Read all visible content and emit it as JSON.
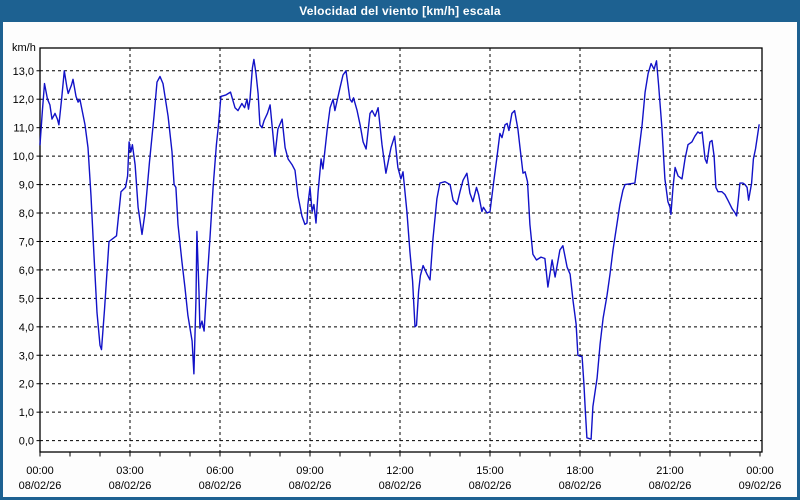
{
  "window": {
    "title": "Velocidad del viento [km/h] escala",
    "titlebar_color": "#1d6191",
    "border_color": "#1d6191",
    "background_color": "#fdfdfd"
  },
  "chart_data": {
    "type": "line",
    "title": "Velocidad del viento [km/h] escala",
    "ylabel": "km/h",
    "xlabel": "",
    "ylim": [
      -0.4,
      13.8
    ],
    "x_hours_range": [
      0,
      24
    ],
    "grid": "dashed-black-on-white",
    "legend": "none",
    "plot_bg": "#ffffff",
    "line_color": "#1212c8",
    "y_ticks": [
      {
        "value": 13,
        "label": "13,0"
      },
      {
        "value": 12,
        "label": "12,0"
      },
      {
        "value": 11,
        "label": "11,0"
      },
      {
        "value": 10,
        "label": "10,0"
      },
      {
        "value": 9,
        "label": "9,0"
      },
      {
        "value": 8,
        "label": "8,0"
      },
      {
        "value": 7,
        "label": "7,0"
      },
      {
        "value": 6,
        "label": "6,0"
      },
      {
        "value": 5,
        "label": "5,0"
      },
      {
        "value": 4,
        "label": "4,0"
      },
      {
        "value": 3,
        "label": "3,0"
      },
      {
        "value": 2,
        "label": "2,0"
      },
      {
        "value": 1,
        "label": "1,0"
      },
      {
        "value": 0,
        "label": "0,0"
      }
    ],
    "x_ticks": [
      {
        "hour": 0,
        "time": "00:00",
        "date": "08/02/26"
      },
      {
        "hour": 3,
        "time": "03:00",
        "date": "08/02/26"
      },
      {
        "hour": 6,
        "time": "06:00",
        "date": "08/02/26"
      },
      {
        "hour": 9,
        "time": "09:00",
        "date": "08/02/26"
      },
      {
        "hour": 12,
        "time": "12:00",
        "date": "08/02/26"
      },
      {
        "hour": 15,
        "time": "15:00",
        "date": "08/02/26"
      },
      {
        "hour": 18,
        "time": "18:00",
        "date": "08/02/26"
      },
      {
        "hour": 21,
        "time": "21:00",
        "date": "08/02/26"
      },
      {
        "hour": 24,
        "time": "00:00",
        "date": "09/02/26"
      }
    ],
    "series": [
      {
        "name": "Velocidad del viento",
        "units": "km/h",
        "points": [
          [
            0.0,
            10.4
          ],
          [
            0.08,
            11.6
          ],
          [
            0.15,
            12.55
          ],
          [
            0.25,
            12.0
          ],
          [
            0.33,
            11.8
          ],
          [
            0.4,
            11.3
          ],
          [
            0.5,
            11.5
          ],
          [
            0.58,
            11.3
          ],
          [
            0.63,
            11.1
          ],
          [
            0.72,
            12.0
          ],
          [
            0.81,
            13.0
          ],
          [
            0.9,
            12.4
          ],
          [
            0.94,
            12.2
          ],
          [
            1.05,
            12.5
          ],
          [
            1.1,
            12.7
          ],
          [
            1.2,
            12.1
          ],
          [
            1.27,
            11.9
          ],
          [
            1.33,
            12.0
          ],
          [
            1.5,
            11.1
          ],
          [
            1.6,
            10.3
          ],
          [
            1.7,
            8.6
          ],
          [
            1.8,
            6.5
          ],
          [
            1.9,
            4.5
          ],
          [
            2.0,
            3.35
          ],
          [
            2.05,
            3.2
          ],
          [
            2.15,
            4.6
          ],
          [
            2.3,
            7.0
          ],
          [
            2.55,
            7.2
          ],
          [
            2.7,
            8.75
          ],
          [
            2.85,
            8.9
          ],
          [
            2.92,
            9.3
          ],
          [
            2.97,
            10.5
          ],
          [
            3.03,
            10.15
          ],
          [
            3.08,
            10.4
          ],
          [
            3.17,
            9.7
          ],
          [
            3.27,
            8.2
          ],
          [
            3.4,
            7.25
          ],
          [
            3.5,
            8.0
          ],
          [
            3.65,
            9.8
          ],
          [
            3.8,
            11.4
          ],
          [
            3.9,
            12.6
          ],
          [
            4.0,
            12.8
          ],
          [
            4.1,
            12.55
          ],
          [
            4.27,
            11.4
          ],
          [
            4.4,
            10.15
          ],
          [
            4.47,
            9.0
          ],
          [
            4.53,
            8.9
          ],
          [
            4.6,
            7.6
          ],
          [
            4.73,
            6.3
          ],
          [
            4.83,
            5.4
          ],
          [
            4.93,
            4.4
          ],
          [
            5.07,
            3.5
          ],
          [
            5.13,
            2.35
          ],
          [
            5.2,
            5.0
          ],
          [
            5.23,
            7.35
          ],
          [
            5.3,
            5.2
          ],
          [
            5.33,
            3.95
          ],
          [
            5.4,
            4.2
          ],
          [
            5.47,
            3.85
          ],
          [
            5.57,
            5.6
          ],
          [
            5.67,
            7.2
          ],
          [
            5.77,
            8.9
          ],
          [
            5.88,
            10.4
          ],
          [
            5.95,
            11.1
          ],
          [
            6.03,
            12.1
          ],
          [
            6.2,
            12.15
          ],
          [
            6.35,
            12.25
          ],
          [
            6.5,
            11.7
          ],
          [
            6.6,
            11.6
          ],
          [
            6.73,
            11.85
          ],
          [
            6.82,
            11.7
          ],
          [
            6.9,
            12.0
          ],
          [
            6.95,
            11.65
          ],
          [
            7.0,
            12.0
          ],
          [
            7.08,
            13.1
          ],
          [
            7.13,
            13.4
          ],
          [
            7.2,
            12.9
          ],
          [
            7.27,
            12.2
          ],
          [
            7.33,
            11.1
          ],
          [
            7.4,
            11.0
          ],
          [
            7.47,
            11.25
          ],
          [
            7.58,
            11.5
          ],
          [
            7.67,
            11.8
          ],
          [
            7.77,
            10.7
          ],
          [
            7.83,
            10.0
          ],
          [
            7.93,
            10.95
          ],
          [
            8.07,
            11.3
          ],
          [
            8.17,
            10.3
          ],
          [
            8.27,
            9.9
          ],
          [
            8.4,
            9.7
          ],
          [
            8.5,
            9.5
          ],
          [
            8.6,
            8.6
          ],
          [
            8.73,
            7.9
          ],
          [
            8.83,
            7.6
          ],
          [
            8.9,
            7.65
          ],
          [
            8.93,
            8.3
          ],
          [
            9.0,
            8.9
          ],
          [
            9.07,
            8.05
          ],
          [
            9.13,
            8.3
          ],
          [
            9.2,
            7.65
          ],
          [
            9.27,
            8.75
          ],
          [
            9.37,
            9.9
          ],
          [
            9.43,
            9.55
          ],
          [
            9.57,
            10.9
          ],
          [
            9.67,
            11.7
          ],
          [
            9.77,
            12.0
          ],
          [
            9.83,
            11.6
          ],
          [
            10.0,
            12.4
          ],
          [
            10.1,
            12.85
          ],
          [
            10.2,
            13.0
          ],
          [
            10.33,
            12.0
          ],
          [
            10.4,
            11.9
          ],
          [
            10.45,
            12.05
          ],
          [
            10.57,
            11.6
          ],
          [
            10.67,
            11.1
          ],
          [
            10.77,
            10.5
          ],
          [
            10.87,
            10.25
          ],
          [
            11.0,
            11.5
          ],
          [
            11.07,
            11.6
          ],
          [
            11.17,
            11.4
          ],
          [
            11.27,
            11.7
          ],
          [
            11.4,
            10.4
          ],
          [
            11.53,
            9.4
          ],
          [
            11.7,
            10.3
          ],
          [
            11.82,
            10.7
          ],
          [
            11.93,
            9.6
          ],
          [
            12.03,
            9.2
          ],
          [
            12.1,
            9.45
          ],
          [
            12.23,
            8.05
          ],
          [
            12.33,
            6.65
          ],
          [
            12.42,
            5.6
          ],
          [
            12.5,
            4.0
          ],
          [
            12.55,
            4.05
          ],
          [
            12.62,
            5.25
          ],
          [
            12.68,
            5.8
          ],
          [
            12.77,
            6.15
          ],
          [
            12.9,
            5.85
          ],
          [
            13.0,
            5.65
          ],
          [
            13.1,
            7.1
          ],
          [
            13.23,
            8.5
          ],
          [
            13.33,
            9.05
          ],
          [
            13.5,
            9.1
          ],
          [
            13.67,
            9.0
          ],
          [
            13.77,
            8.45
          ],
          [
            13.9,
            8.3
          ],
          [
            14.0,
            8.75
          ],
          [
            14.1,
            9.15
          ],
          [
            14.23,
            9.4
          ],
          [
            14.33,
            8.7
          ],
          [
            14.43,
            8.4
          ],
          [
            14.55,
            8.9
          ],
          [
            14.62,
            8.65
          ],
          [
            14.73,
            8.05
          ],
          [
            14.78,
            8.2
          ],
          [
            14.9,
            8.0
          ],
          [
            15.0,
            8.05
          ],
          [
            15.1,
            8.9
          ],
          [
            15.23,
            9.95
          ],
          [
            15.33,
            10.8
          ],
          [
            15.4,
            10.65
          ],
          [
            15.5,
            11.1
          ],
          [
            15.57,
            11.15
          ],
          [
            15.63,
            10.9
          ],
          [
            15.73,
            11.5
          ],
          [
            15.82,
            11.6
          ],
          [
            15.93,
            10.95
          ],
          [
            16.0,
            10.3
          ],
          [
            16.1,
            9.4
          ],
          [
            16.17,
            9.45
          ],
          [
            16.25,
            9.1
          ],
          [
            16.33,
            7.6
          ],
          [
            16.43,
            6.55
          ],
          [
            16.55,
            6.35
          ],
          [
            16.7,
            6.45
          ],
          [
            16.83,
            6.4
          ],
          [
            16.93,
            5.4
          ],
          [
            17.07,
            6.35
          ],
          [
            17.17,
            5.75
          ],
          [
            17.33,
            6.7
          ],
          [
            17.43,
            6.85
          ],
          [
            17.57,
            6.1
          ],
          [
            17.67,
            5.85
          ],
          [
            17.77,
            4.9
          ],
          [
            17.87,
            4.1
          ],
          [
            17.93,
            3.0
          ],
          [
            18.07,
            2.95
          ],
          [
            18.13,
            2.0
          ],
          [
            18.18,
            1.0
          ],
          [
            18.23,
            0.1
          ],
          [
            18.37,
            0.05
          ],
          [
            18.43,
            1.2
          ],
          [
            18.57,
            2.2
          ],
          [
            18.67,
            3.4
          ],
          [
            18.77,
            4.3
          ],
          [
            18.9,
            5.1
          ],
          [
            19.0,
            5.85
          ],
          [
            19.1,
            6.7
          ],
          [
            19.23,
            7.6
          ],
          [
            19.33,
            8.3
          ],
          [
            19.43,
            8.8
          ],
          [
            19.5,
            9.0
          ],
          [
            19.83,
            9.05
          ],
          [
            19.93,
            9.9
          ],
          [
            20.07,
            11.1
          ],
          [
            20.17,
            12.25
          ],
          [
            20.27,
            12.9
          ],
          [
            20.37,
            13.25
          ],
          [
            20.47,
            13.05
          ],
          [
            20.55,
            13.35
          ],
          [
            20.62,
            12.5
          ],
          [
            20.73,
            11.0
          ],
          [
            20.83,
            9.2
          ],
          [
            20.93,
            8.4
          ],
          [
            21.0,
            8.2
          ],
          [
            21.03,
            7.95
          ],
          [
            21.1,
            8.9
          ],
          [
            21.17,
            9.6
          ],
          [
            21.27,
            9.3
          ],
          [
            21.4,
            9.2
          ],
          [
            21.5,
            9.9
          ],
          [
            21.6,
            10.4
          ],
          [
            21.73,
            10.5
          ],
          [
            21.83,
            10.7
          ],
          [
            21.93,
            10.85
          ],
          [
            22.0,
            10.8
          ],
          [
            22.07,
            10.85
          ],
          [
            22.17,
            9.9
          ],
          [
            22.23,
            9.75
          ],
          [
            22.33,
            10.5
          ],
          [
            22.4,
            10.55
          ],
          [
            22.47,
            10.0
          ],
          [
            22.53,
            8.9
          ],
          [
            22.6,
            8.75
          ],
          [
            22.73,
            8.75
          ],
          [
            22.83,
            8.65
          ],
          [
            22.93,
            8.45
          ],
          [
            23.07,
            8.15
          ],
          [
            23.17,
            8.0
          ],
          [
            23.22,
            7.9
          ],
          [
            23.28,
            8.5
          ],
          [
            23.33,
            9.05
          ],
          [
            23.43,
            9.05
          ],
          [
            23.5,
            9.0
          ],
          [
            23.57,
            8.9
          ],
          [
            23.62,
            8.45
          ],
          [
            23.72,
            9.05
          ],
          [
            23.78,
            9.9
          ],
          [
            23.85,
            10.25
          ],
          [
            23.9,
            10.6
          ],
          [
            23.97,
            11.1
          ]
        ]
      }
    ]
  }
}
